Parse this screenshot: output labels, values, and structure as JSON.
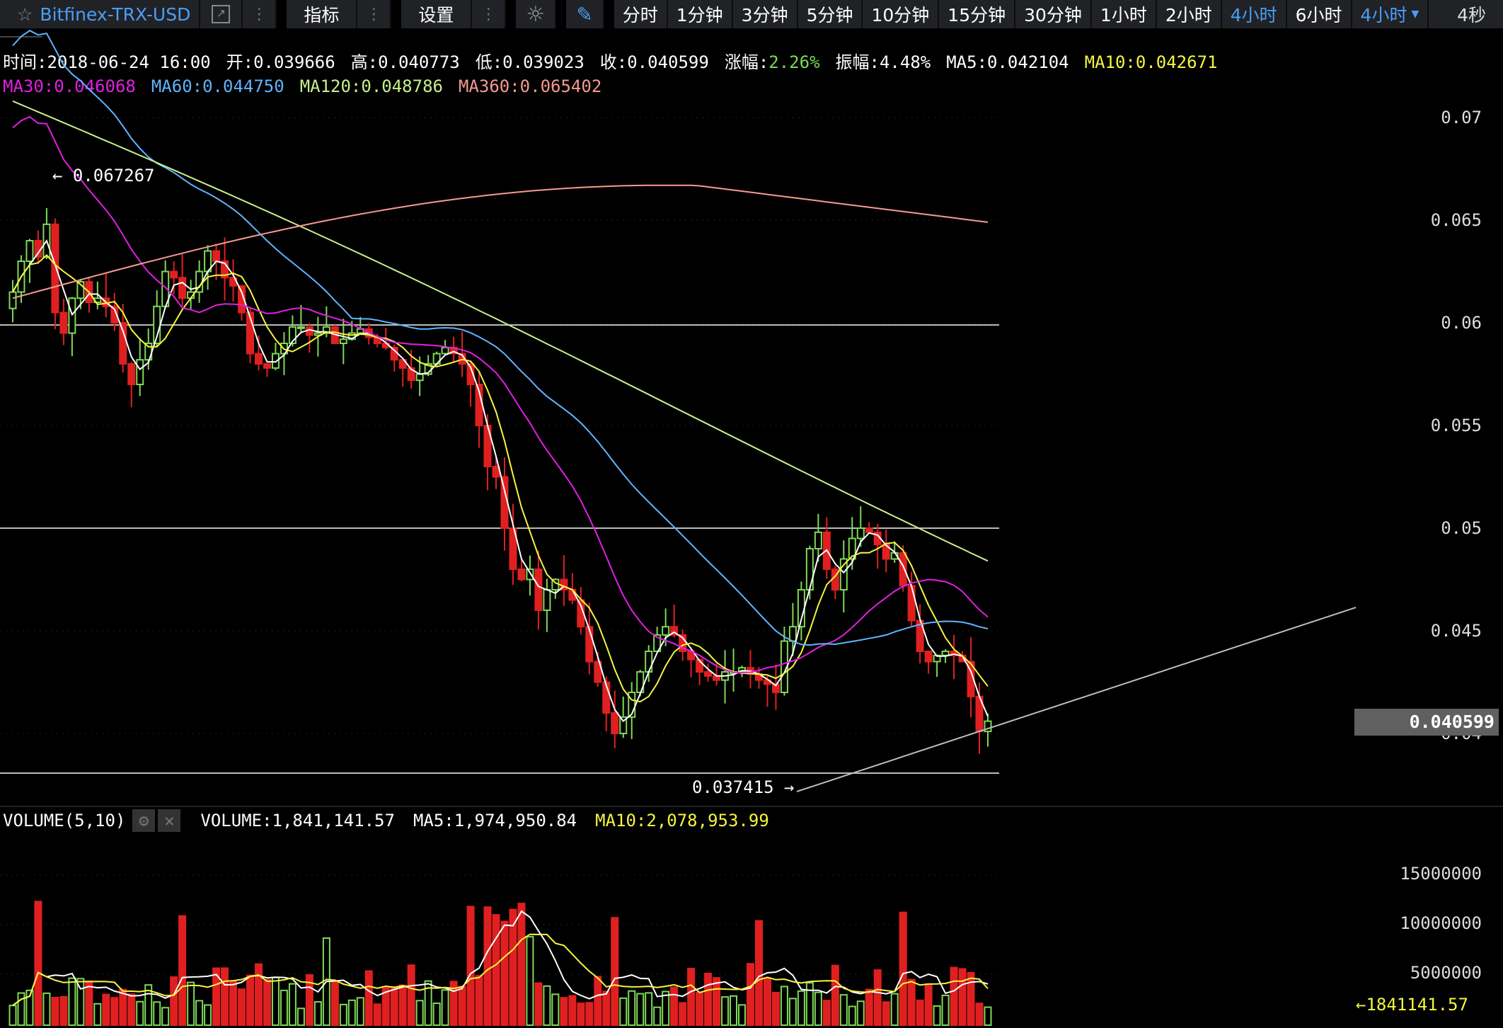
{
  "toolbar": {
    "symbol": "Bitfinex-TRX-USD",
    "indicators_label": "指标",
    "settings_label": "设置",
    "periods": [
      "分时",
      "1分钟",
      "3分钟",
      "5分钟",
      "10分钟",
      "15分钟",
      "30分钟",
      "1小时",
      "2小时",
      "4小时",
      "6小时"
    ],
    "active_period": "4小时",
    "dropdown_label": "4小时",
    "refresh_label": "4秒"
  },
  "info": {
    "time": "时间:2018-06-24 16:00",
    "open": "开:0.039666",
    "high": "高:0.040773",
    "low": "低:0.039023",
    "close": "收:0.040599",
    "change_label": "涨幅:",
    "change_value": "2.26%",
    "amplitude": "振幅:4.48%",
    "ma5": "MA5:0.042104",
    "ma10": "MA10:0.042671",
    "ma30": "MA30:0.046068",
    "ma60": "MA60:0.044750",
    "ma120": "MA120:0.048786",
    "ma360": "MA360:0.065402"
  },
  "price_axis": [
    "0.07",
    "0.065",
    "0.06",
    "0.055",
    "0.05",
    "0.045",
    "0.04"
  ],
  "current_price": "0.040599",
  "high_marker": "0.067267",
  "low_marker": "0.037415",
  "volume_info": {
    "title": "VOLUME(5,10)",
    "volume": "VOLUME:1,841,141.57",
    "ma5": "MA5:1,974,950.84",
    "ma10": "MA10:2,078,953.99"
  },
  "volume_axis": [
    "15000000",
    "10000000",
    "5000000"
  ],
  "current_volume": "1841141.57",
  "colors": {
    "up": "#7ed957",
    "down": "#e02020",
    "ma5": "#ffffff",
    "ma10": "#f5f542",
    "ma30": "#e020e0",
    "ma60": "#5fb4ff",
    "ma120": "#c8f08c",
    "ma360": "#f59a90",
    "accent": "#4b9ef8"
  },
  "chart_data": {
    "type": "candlestick",
    "price_range": [
      0.0365,
      0.0725
    ],
    "volume_range": [
      0,
      19000000
    ],
    "close_series": [
      0.0615,
      0.063,
      0.064,
      0.0632,
      0.0648,
      0.0605,
      0.0595,
      0.0612,
      0.062,
      0.061,
      0.0612,
      0.0608,
      0.06,
      0.058,
      0.057,
      0.0582,
      0.059,
      0.0608,
      0.0625,
      0.0622,
      0.0612,
      0.0615,
      0.0625,
      0.0635,
      0.063,
      0.0622,
      0.0618,
      0.0605,
      0.0585,
      0.058,
      0.0578,
      0.0585,
      0.059,
      0.0598,
      0.0598,
      0.0594,
      0.0595,
      0.0598,
      0.059,
      0.0592,
      0.0595,
      0.0597,
      0.0593,
      0.059,
      0.0588,
      0.0582,
      0.0578,
      0.0572,
      0.0575,
      0.058,
      0.0585,
      0.0588,
      0.0585,
      0.058,
      0.057,
      0.055,
      0.053,
      0.0525,
      0.05,
      0.048,
      0.0475,
      0.048,
      0.046,
      0.047,
      0.0475,
      0.047,
      0.0465,
      0.0452,
      0.0435,
      0.0425,
      0.041,
      0.04,
      0.0408,
      0.042,
      0.043,
      0.044,
      0.0448,
      0.0452,
      0.0448,
      0.044,
      0.0436,
      0.043,
      0.0428,
      0.0426,
      0.043,
      0.043,
      0.0432,
      0.0429,
      0.0426,
      0.0424,
      0.042,
      0.0445,
      0.0452,
      0.047,
      0.049,
      0.0498,
      0.048,
      0.047,
      0.0485,
      0.0495,
      0.05,
      0.0498,
      0.0492,
      0.0485,
      0.0488,
      0.0472,
      0.0455,
      0.044,
      0.0435,
      0.0438,
      0.044,
      0.0438,
      0.0435,
      0.0418,
      0.0401,
      0.0406
    ],
    "ma_series": [
      "MA5",
      "MA10",
      "MA30",
      "MA60",
      "MA120",
      "MA360"
    ],
    "annotations": [
      "0.067267",
      "0.037415"
    ]
  }
}
